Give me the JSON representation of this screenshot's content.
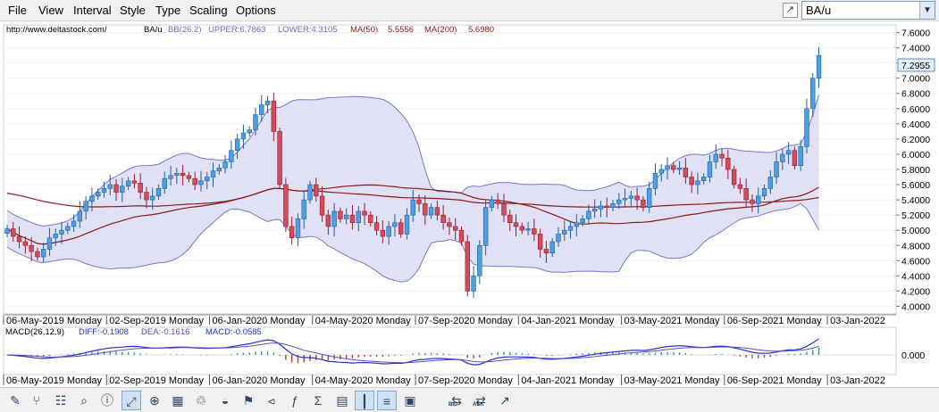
{
  "menu": [
    "File",
    "View",
    "Interval",
    "Style",
    "Type",
    "Scaling",
    "Options"
  ],
  "symbol_select": {
    "value": "BA/u"
  },
  "header": {
    "url": "http://www.deltastock.com/",
    "symbol": "BA/u",
    "bb_label": "BB(26,2)",
    "upper_label": "UPPER:6.7863",
    "lower_label": "LOWER:4.3105",
    "ma50_label": "MA(50)",
    "ma50_value": "5.5556",
    "ma200_label": "MA(200)",
    "ma200_value": "5.6980"
  },
  "macd_header": {
    "label": "MACD(26,12,9)",
    "diff": "DIFF:-0.1908",
    "dea": "DEA:-0.1616",
    "macd": "MACD:-0.0585"
  },
  "chart_data": {
    "type": "candlestick",
    "symbol": "BA/u",
    "price_axis": {
      "ylim": [
        3.9,
        7.7
      ],
      "ticks": [
        "4.0000",
        "4.2000",
        "4.4000",
        "4.6000",
        "4.8000",
        "5.0000",
        "5.2000",
        "5.4000",
        "5.6000",
        "5.8000",
        "6.0000",
        "6.2000",
        "6.4000",
        "6.6000",
        "6.8000",
        "7.0000",
        "7.2000",
        "7.4000",
        "7.6000"
      ]
    },
    "last_price": "7.2955",
    "date_labels": [
      "06-May-2019 Monday",
      "02-Sep-2019 Monday",
      "06-Jan-2020 Monday",
      "04-May-2020 Monday",
      "07-Sep-2020 Monday",
      "04-Jan-2021 Monday",
      "03-May-2021 Monday",
      "06-Sep-2021 Monday",
      "03-Jan-2022"
    ],
    "weeks_between_labels": 17,
    "close": [
      5.02,
      4.92,
      4.85,
      4.8,
      4.72,
      4.65,
      4.75,
      4.9,
      4.95,
      5.0,
      5.05,
      5.12,
      5.25,
      5.38,
      5.45,
      5.5,
      5.55,
      5.6,
      5.5,
      5.58,
      5.65,
      5.62,
      5.5,
      5.4,
      5.45,
      5.55,
      5.68,
      5.72,
      5.75,
      5.72,
      5.68,
      5.6,
      5.65,
      5.7,
      5.78,
      5.82,
      5.9,
      6.05,
      6.2,
      6.28,
      6.32,
      6.52,
      6.65,
      6.7,
      6.3,
      5.6,
      5.05,
      4.9,
      5.15,
      5.4,
      5.6,
      5.45,
      5.2,
      5.05,
      5.25,
      5.15,
      5.2,
      5.1,
      5.25,
      5.2,
      5.1,
      5.0,
      4.92,
      5.05,
      5.1,
      4.95,
      5.2,
      5.4,
      5.35,
      5.2,
      5.3,
      5.2,
      5.1,
      5.05,
      5.0,
      4.85,
      4.2,
      4.4,
      4.8,
      5.3,
      5.4,
      5.35,
      5.2,
      5.1,
      5.05,
      5.0,
      5.02,
      4.95,
      4.75,
      4.7,
      4.85,
      4.95,
      5.0,
      5.05,
      5.1,
      5.15,
      5.25,
      5.28,
      5.32,
      5.3,
      5.35,
      5.4,
      5.42,
      5.45,
      5.4,
      5.3,
      5.55,
      5.75,
      5.8,
      5.85,
      5.8,
      5.82,
      5.7,
      5.6,
      5.65,
      5.7,
      5.9,
      6.0,
      5.95,
      5.8,
      5.6,
      5.55,
      5.4,
      5.35,
      5.45,
      5.55,
      5.7,
      5.9,
      6.0,
      6.05,
      5.85,
      6.1,
      6.6,
      7.0,
      7.3
    ],
    "series": [
      {
        "name": "MA(50)",
        "color": "#8b1a1a"
      },
      {
        "name": "MA(200)",
        "color": "#8b1a1a"
      },
      {
        "name": "BB(26,2)",
        "color": "#7777cc",
        "fill": "#dcdcf5"
      }
    ],
    "macd_axis": {
      "ticks": [
        "0.000"
      ]
    },
    "colors": {
      "up": "#4f9fe0",
      "down": "#d24c5a",
      "up_edge": "#1f5fa8",
      "down_edge": "#9b1d2b",
      "macd_line": "#2233cc",
      "signal_line": "#5a4bd0",
      "hist_pos": "#2a9d8f",
      "hist_neg": "#c0392b"
    }
  },
  "toolbar": [
    "pencil-icon",
    "network-icon",
    "table-icon",
    "zoom-icon",
    "info-icon",
    "fit-icon",
    "crosshair-icon",
    "calculator-icon",
    "trash-icon",
    "paint-bucket-icon",
    "flag-icon",
    "chart-type-icon",
    "function-icon",
    "sigma-icon",
    "grid-icon",
    "bar-view-icon",
    "line-view-icon",
    "camera-icon",
    "bid-icon",
    "ask-icon",
    "popout-icon"
  ],
  "toolbar_sub": {
    "bid": "BID",
    "ask": "ASK"
  }
}
